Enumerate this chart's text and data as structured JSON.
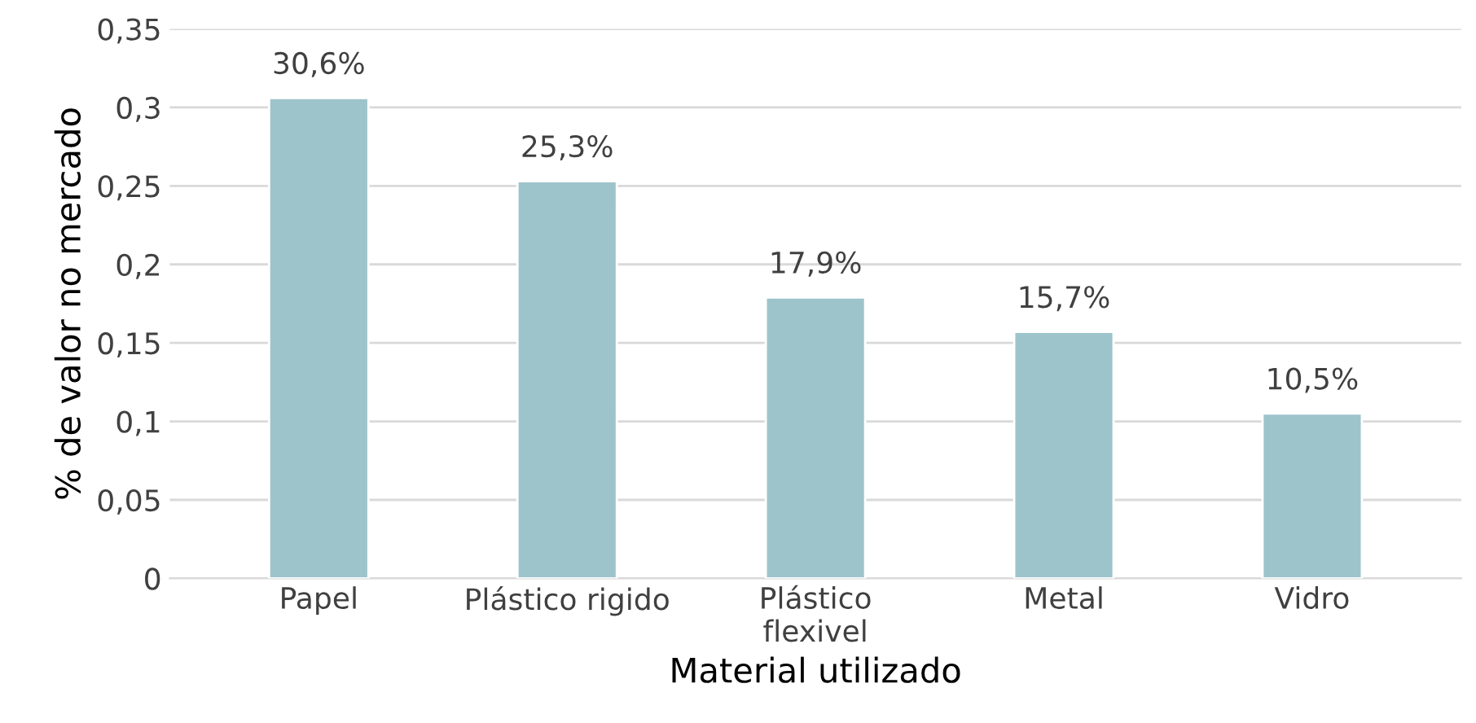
{
  "chart_data": {
    "type": "bar",
    "xlabel": "Material utilizado",
    "ylabel": "% de valor no mercado",
    "categories": [
      "Papel",
      "Plástico rigido",
      "Plástico\nflexivel",
      "Metal",
      "Vidro"
    ],
    "values": [
      0.306,
      0.253,
      0.179,
      0.157,
      0.105
    ],
    "value_labels": [
      "30,6%",
      "25,3%",
      "17,9%",
      "15,7%",
      "10,5%"
    ],
    "color": "#9dc4cb",
    "ylim": [
      0,
      0.35
    ],
    "yticks": [
      0,
      {
        "value": 0.05,
        "label": "0,05"
      },
      {
        "value": 0.1,
        "label": "0,1"
      },
      {
        "value": 0.15,
        "label": "0,15"
      },
      {
        "value": 0.2,
        "label": "0,2"
      },
      {
        "value": 0.25,
        "label": "0,25"
      },
      {
        "value": 0.3,
        "label": "0,3"
      },
      {
        "value": 0.35,
        "label": "0,35"
      }
    ],
    "grid": "y",
    "legend": false
  }
}
